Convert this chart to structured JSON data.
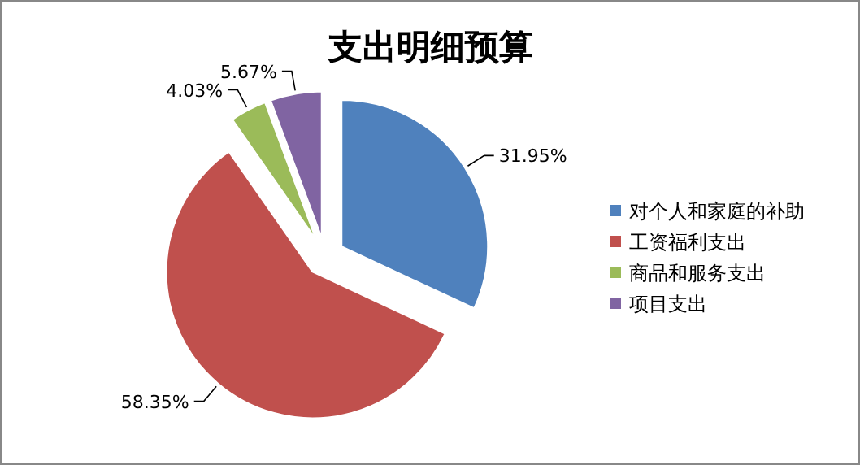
{
  "chart_data": {
    "type": "pie",
    "title": "支出明细预算",
    "categories": [
      "对个人和家庭的补助",
      "工资福利支出",
      "商品和服务支出",
      "项目支出"
    ],
    "values": [
      31.95,
      58.35,
      4.03,
      5.67
    ],
    "colors": [
      "#4f81bd",
      "#c0504d",
      "#9bbb59",
      "#8064a2"
    ],
    "value_labels": [
      "31.95%",
      "58.35%",
      "4.03%",
      "5.67%"
    ],
    "legend": "right"
  }
}
